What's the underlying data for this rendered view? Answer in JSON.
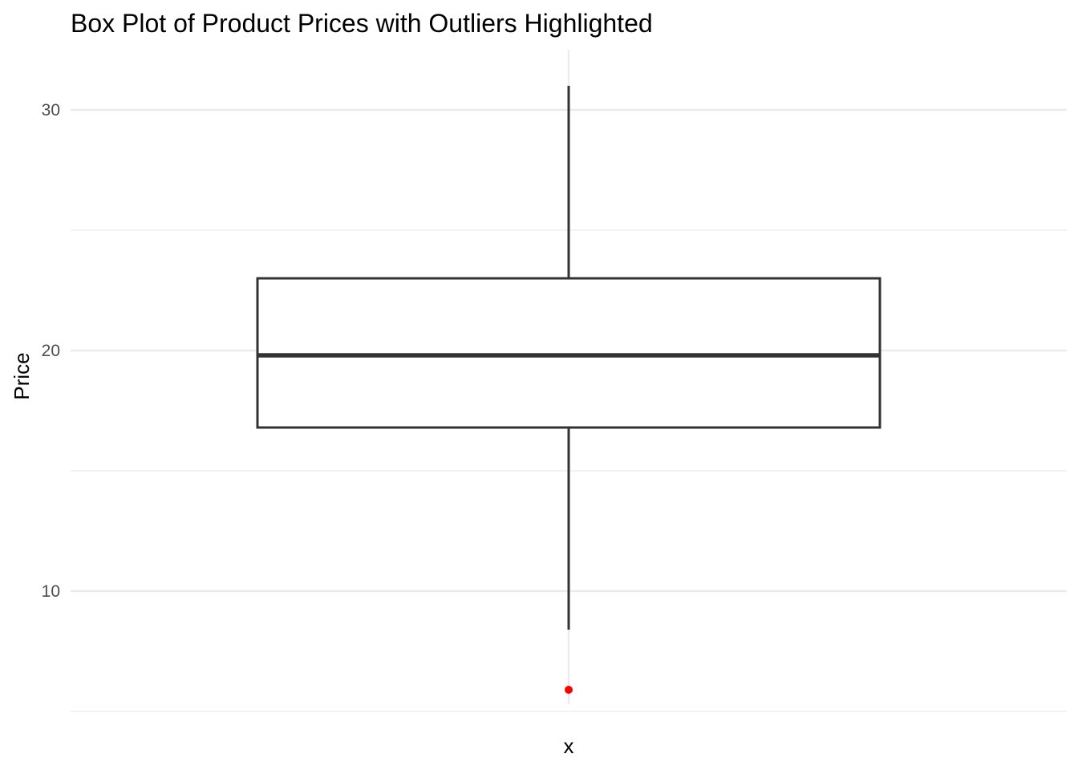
{
  "chart_data": {
    "type": "box",
    "title": "Box Plot of Product Prices with Outliers Highlighted",
    "xlabel": "x",
    "ylabel": "Price",
    "ylim": [
      5.3,
      32.5
    ],
    "y_ticks": [
      10,
      20,
      30
    ],
    "y_minor_ticks": [
      5,
      15,
      25
    ],
    "grid": true,
    "box": {
      "category": "x",
      "whisker_low": 8.4,
      "q1": 16.8,
      "median": 19.8,
      "q3": 23.0,
      "whisker_high": 31.0
    },
    "outliers": [
      5.9
    ],
    "outlier_color": "#ff0000",
    "box_color": "#333333",
    "grid_color": "#ebebeb"
  }
}
